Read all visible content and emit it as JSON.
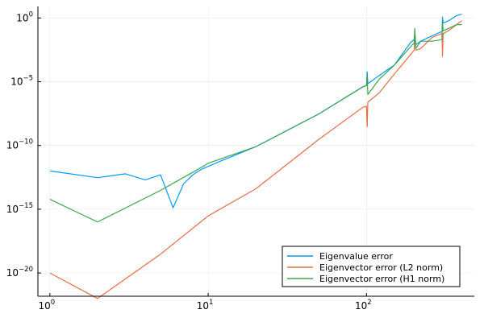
{
  "chart_data": {
    "type": "line",
    "xscale": "log",
    "yscale": "log",
    "xlim": [
      0.84,
      480
    ],
    "ylim": [
      1.5e-22,
      8
    ],
    "grid": true,
    "legend_position": "bottom-right",
    "x_ticks": [
      {
        "value": 1,
        "base": "10",
        "exp": "0"
      },
      {
        "value": 10,
        "base": "10",
        "exp": "1"
      },
      {
        "value": 100,
        "base": "10",
        "exp": "2"
      }
    ],
    "y_ticks": [
      {
        "value": 1,
        "base": "10",
        "exp": "0"
      },
      {
        "value": 1e-05,
        "base": "10",
        "exp": "−5"
      },
      {
        "value": 1e-10,
        "base": "10",
        "exp": "−10"
      },
      {
        "value": 1e-15,
        "base": "10",
        "exp": "−15"
      },
      {
        "value": 1e-20,
        "base": "10",
        "exp": "−20"
      }
    ],
    "series": [
      {
        "name": "Eigenvalue error",
        "color": "#009AFA",
        "points": [
          [
            1,
            1e-12
          ],
          [
            2,
            3e-13
          ],
          [
            3,
            6e-13
          ],
          [
            4,
            2e-13
          ],
          [
            5,
            5e-13
          ],
          [
            6,
            1.3e-15
          ],
          [
            7,
            1e-13
          ],
          [
            8,
            5e-13
          ],
          [
            9,
            1.3e-12
          ],
          [
            12,
            6e-12
          ],
          [
            20,
            8e-11
          ],
          [
            50,
            3e-08
          ],
          [
            95,
            4e-06
          ],
          [
            100,
            5e-06
          ],
          [
            101,
            6e-05
          ],
          [
            102,
            7e-06
          ],
          [
            120,
            3e-05
          ],
          [
            150,
            0.0002
          ],
          [
            190,
            0.012
          ],
          [
            200,
            0.02
          ],
          [
            202,
            0.05
          ],
          [
            205,
            0.008
          ],
          [
            220,
            0.015
          ],
          [
            260,
            0.04
          ],
          [
            295,
            0.08
          ],
          [
            300,
            0.08
          ],
          [
            302,
            1.2
          ],
          [
            305,
            0.4
          ],
          [
            330,
            0.6
          ],
          [
            370,
            1.5
          ],
          [
            400,
            2
          ]
        ]
      },
      {
        "name": "Eigenvector error (L2 norm)",
        "color": "#E26F46",
        "points": [
          [
            1,
            1e-20
          ],
          [
            2,
            1e-22
          ],
          [
            5,
            3e-19
          ],
          [
            10,
            3e-16
          ],
          [
            20,
            4e-14
          ],
          [
            50,
            3e-10
          ],
          [
            95,
            1e-07
          ],
          [
            100,
            1.2e-07
          ],
          [
            101,
            3e-09
          ],
          [
            102,
            2.5e-07
          ],
          [
            120,
            1.3e-06
          ],
          [
            150,
            4e-05
          ],
          [
            195,
            0.002
          ],
          [
            200,
            0.003
          ],
          [
            202,
            0.08
          ],
          [
            205,
            0.003
          ],
          [
            220,
            0.004
          ],
          [
            260,
            0.03
          ],
          [
            300,
            0.06
          ],
          [
            302,
            0.001
          ],
          [
            305,
            0.06
          ],
          [
            330,
            0.1
          ],
          [
            370,
            0.3
          ],
          [
            400,
            0.6
          ]
        ]
      },
      {
        "name": "Eigenvector error (H1 norm)",
        "color": "#3DA44D",
        "points": [
          [
            1,
            6e-15
          ],
          [
            2,
            1e-16
          ],
          [
            5,
            3e-14
          ],
          [
            8,
            8e-13
          ],
          [
            10,
            4e-12
          ],
          [
            20,
            8e-11
          ],
          [
            50,
            3e-08
          ],
          [
            95,
            4e-06
          ],
          [
            100,
            5e-06
          ],
          [
            101,
            3e-05
          ],
          [
            102,
            1e-06
          ],
          [
            120,
            1.5e-05
          ],
          [
            150,
            0.0002
          ],
          [
            195,
            0.008
          ],
          [
            200,
            0.01
          ],
          [
            202,
            0.15
          ],
          [
            205,
            0.004
          ],
          [
            220,
            0.015
          ],
          [
            260,
            0.015
          ],
          [
            300,
            0.02
          ],
          [
            302,
            0.5
          ],
          [
            305,
            0.1
          ],
          [
            330,
            0.15
          ],
          [
            370,
            0.3
          ],
          [
            400,
            0.3
          ]
        ]
      }
    ]
  }
}
